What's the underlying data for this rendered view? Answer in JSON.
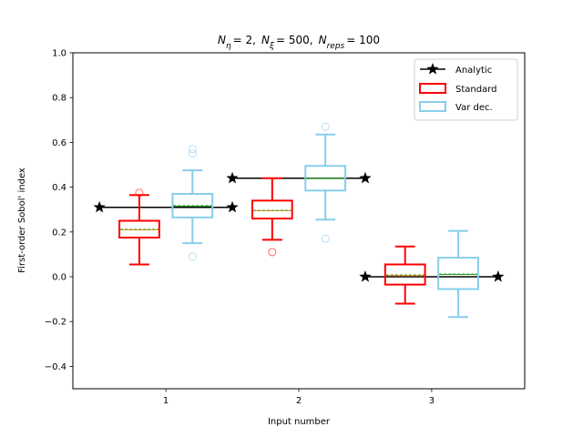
{
  "chart_data": {
    "type": "box",
    "title": "N_η = 2,  N_ξ = 500,  N_reps = 100",
    "title_parts": {
      "eta_sub": "η",
      "eta_val": "= 2,",
      "xi_sub": "ξ",
      "xi_val": "= 500,",
      "reps_sub": "reps",
      "reps_val": "= 100",
      "N": "N"
    },
    "xlabel": "Input number",
    "ylabel": "First-order Sobol' index",
    "xlim": [
      0.3,
      3.7
    ],
    "ylim": [
      -0.5,
      1.0
    ],
    "xticks": [
      1,
      2,
      3
    ],
    "xtick_labels": [
      "1",
      "2",
      "3"
    ],
    "yticks": [
      -0.4,
      -0.2,
      0.0,
      0.2,
      0.4,
      0.6,
      0.8,
      1.0
    ],
    "ytick_labels": [
      "−0.4",
      "−0.2",
      "0.0",
      "0.2",
      "0.4",
      "0.6",
      "0.8",
      "1.0"
    ],
    "grid": false,
    "legend_position": "top-right",
    "legend": [
      "Analytic",
      "Standard",
      "Var dec."
    ],
    "colors": {
      "analytic": "#000000",
      "standard": "#ff0000",
      "var_dec": "#87ceeb",
      "median_standard": "#ff7f0e",
      "mean_line": "#2ca02c"
    },
    "analytic": [
      {
        "input": 1,
        "x": [
          0.5,
          1.5
        ],
        "y": 0.31
      },
      {
        "input": 2,
        "x": [
          1.5,
          2.5
        ],
        "y": 0.44
      },
      {
        "input": 3,
        "x": [
          2.5,
          3.5
        ],
        "y": 0.0
      }
    ],
    "series": [
      {
        "name": "Standard",
        "boxes": [
          {
            "x": 0.8,
            "whislo": 0.055,
            "q1": 0.175,
            "med": 0.21,
            "mean": 0.212,
            "q3": 0.25,
            "whishi": 0.365,
            "fliers": [
              0.375
            ]
          },
          {
            "x": 1.8,
            "whislo": 0.165,
            "q1": 0.26,
            "med": 0.295,
            "mean": 0.297,
            "q3": 0.34,
            "whishi": 0.44,
            "fliers": [
              0.11
            ]
          },
          {
            "x": 2.8,
            "whislo": -0.12,
            "q1": -0.035,
            "med": 0.005,
            "mean": 0.008,
            "q3": 0.055,
            "whishi": 0.135,
            "fliers": []
          }
        ]
      },
      {
        "name": "Var dec.",
        "boxes": [
          {
            "x": 1.2,
            "whislo": 0.15,
            "q1": 0.265,
            "med": 0.315,
            "mean": 0.318,
            "q3": 0.37,
            "whishi": 0.475,
            "fliers": [
              0.09,
              0.55,
              0.57
            ]
          },
          {
            "x": 2.2,
            "whislo": 0.255,
            "q1": 0.385,
            "med": 0.44,
            "mean": 0.438,
            "q3": 0.495,
            "whishi": 0.635,
            "fliers": [
              0.17,
              0.67
            ]
          },
          {
            "x": 3.2,
            "whislo": -0.18,
            "q1": -0.055,
            "med": 0.01,
            "mean": 0.012,
            "q3": 0.085,
            "whishi": 0.205,
            "fliers": []
          }
        ]
      }
    ]
  }
}
